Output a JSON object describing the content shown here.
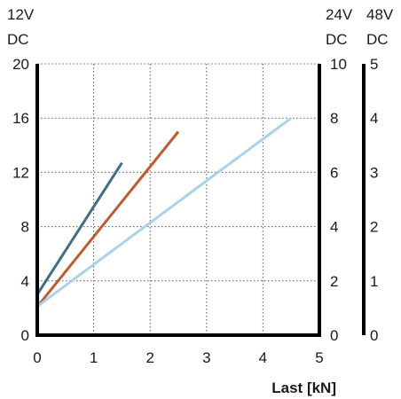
{
  "chart_data": {
    "type": "line",
    "xlabel": "Last [kN]",
    "xlim": [
      0,
      5
    ],
    "x_ticks": [
      "0",
      "1",
      "2",
      "3",
      "4",
      "5"
    ],
    "grid": true,
    "axes": {
      "left": {
        "unit_line1": "12V",
        "unit_line2": "DC",
        "ylim": [
          0,
          20
        ],
        "ticks": [
          "0",
          "4",
          "8",
          "12",
          "16",
          "20"
        ]
      },
      "right1": {
        "unit_line1": "24V",
        "unit_line2": "DC",
        "ylim": [
          0,
          10
        ],
        "ticks": [
          "0",
          "2",
          "4",
          "6",
          "8",
          "10"
        ]
      },
      "right2": {
        "unit_line1": "48V",
        "unit_line2": "DC",
        "ylim": [
          0,
          5
        ],
        "ticks": [
          "0",
          "1",
          "2",
          "3",
          "4",
          "5"
        ]
      }
    },
    "series": [
      {
        "axis": "left",
        "color": "#3f6f86",
        "x": [
          0,
          1.5
        ],
        "y": [
          3.0,
          12.7
        ]
      },
      {
        "axis": "right1",
        "color": "#c25a2e",
        "x": [
          0,
          2.5
        ],
        "y": [
          1.05,
          7.5
        ]
      },
      {
        "axis": "right2",
        "color": "#a9d3e6",
        "x": [
          0,
          4.5
        ],
        "y": [
          0.53,
          4.0
        ]
      }
    ]
  }
}
